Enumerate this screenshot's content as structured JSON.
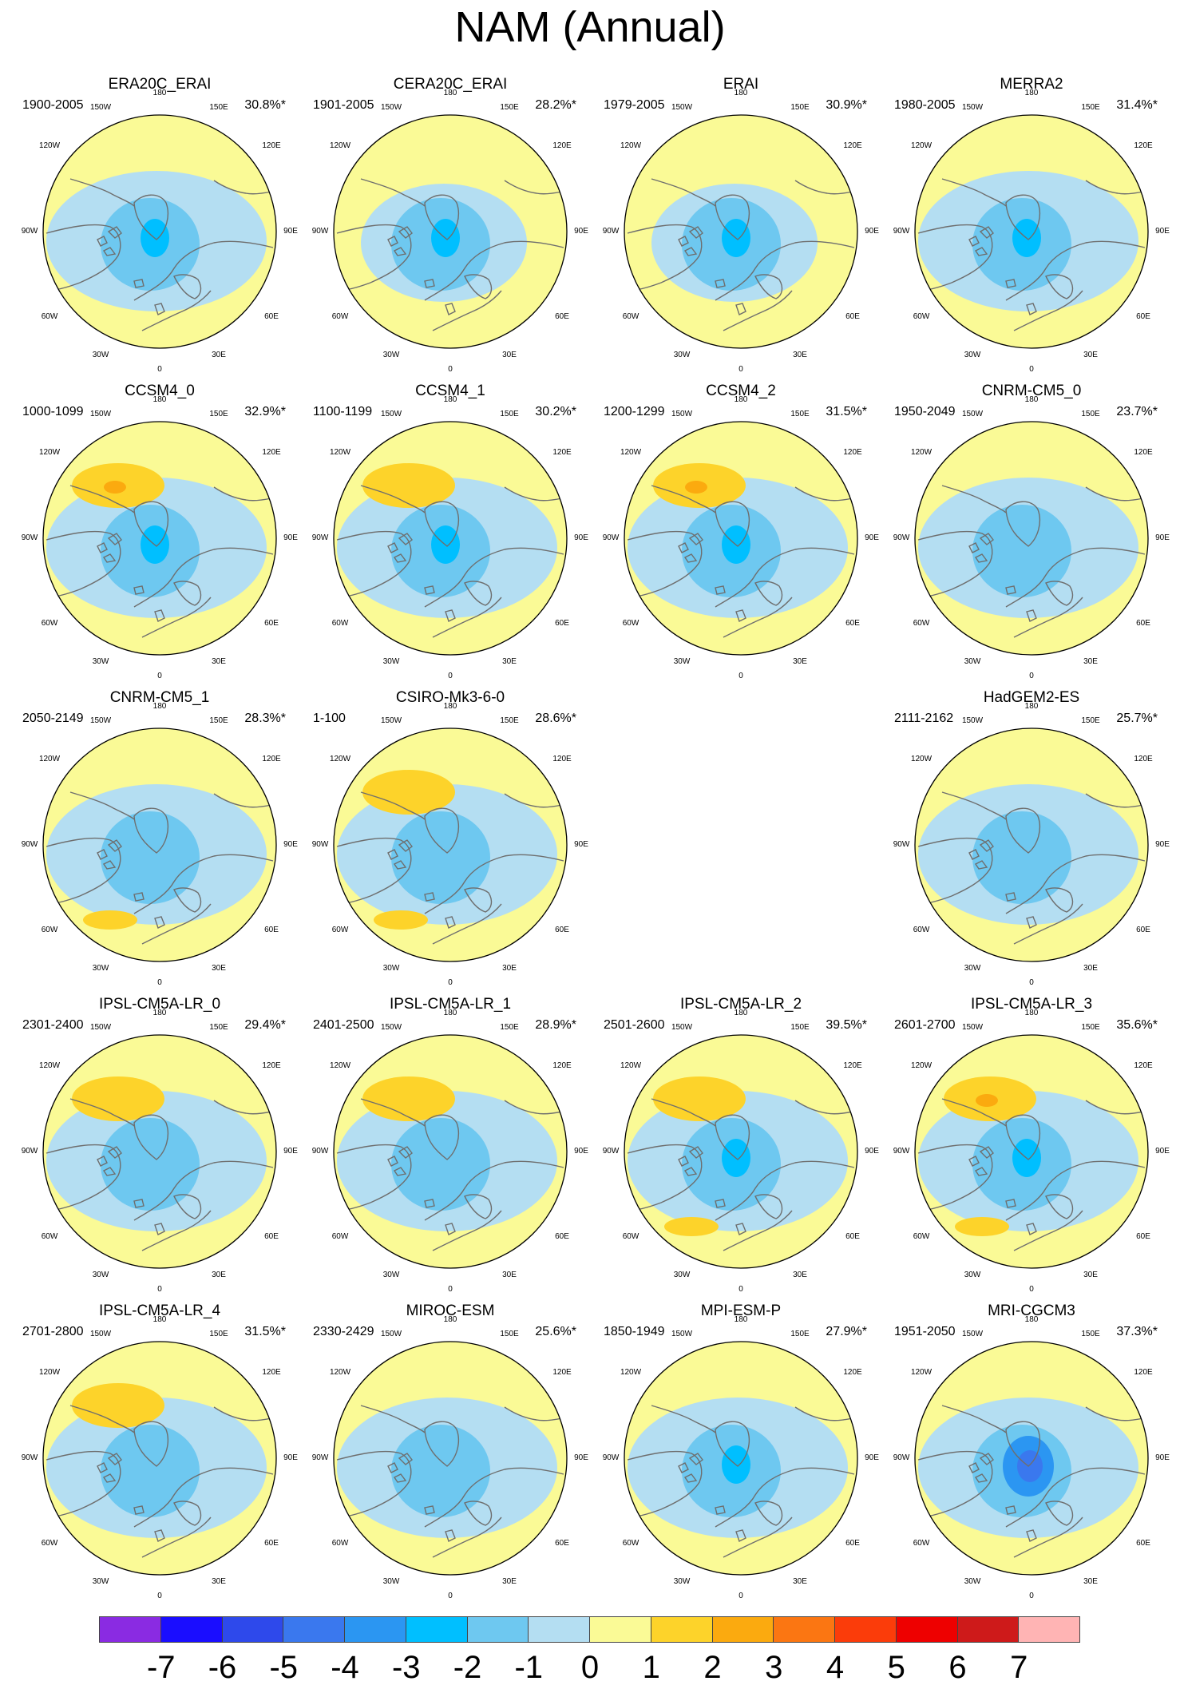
{
  "title": "NAM (Annual)",
  "map_labels": {
    "lon_180": "180",
    "lon_150w": "150W",
    "lon_150e": "150E",
    "lon_120w": "120W",
    "lon_120e": "120E",
    "lon_90w": "90W",
    "lon_90e": "90E",
    "lon_60w": "60W",
    "lon_60e": "60E",
    "lon_30w": "30W",
    "lon_30e": "30E",
    "lon_0": "0"
  },
  "colors": {
    "v-7": "#8a2be2",
    "v-6": "#1a0dff",
    "v-5": "#2e49eb",
    "v-4": "#3a78ee",
    "v-3": "#2b96f2",
    "v-2": "#00bfff",
    "v-1": "#6ec8f0",
    "v0": "#b4def2",
    "v1": "#fafa96",
    "v2": "#fdd32a",
    "v3": "#fbaa0f",
    "v4": "#fb7612",
    "v5": "#fb3c0a",
    "v6": "#ee0000",
    "v7": "#ce1a1a",
    "v8": "#ffb4b4",
    "coast": "#6e6e6e"
  },
  "colorbar": {
    "labels": [
      "-7",
      "-6",
      "-5",
      "-4",
      "-3",
      "-2",
      "-1",
      "0",
      "1",
      "2",
      "3",
      "4",
      "5",
      "6",
      "7"
    ],
    "colors": [
      "#8a2be2",
      "#1a0dff",
      "#2e49eb",
      "#3a78ee",
      "#2b96f2",
      "#00bfff",
      "#6ec8f0",
      "#b4def2",
      "#fafa96",
      "#fdd32a",
      "#fbaa0f",
      "#fb7612",
      "#fb3c0a",
      "#ee0000",
      "#ce1a1a",
      "#ffb4b4"
    ]
  },
  "panels": [
    {
      "name": "ERA20C_ERAI",
      "years": "1900-2005",
      "pct": "30.8%*",
      "pacific": 0,
      "atlantic": 0,
      "core": -2,
      "broad": 1
    },
    {
      "name": "CERA20C_ERAI",
      "years": "1901-2005",
      "pct": "28.2%*",
      "pacific": 0,
      "atlantic": 0,
      "core": -2,
      "broad": 0
    },
    {
      "name": "ERAI",
      "years": "1979-2005",
      "pct": "30.9%*",
      "pacific": 0,
      "atlantic": 0,
      "core": -2,
      "broad": 0
    },
    {
      "name": "MERRA2",
      "years": "1980-2005",
      "pct": "31.4%*",
      "pacific": 0,
      "atlantic": 0,
      "core": -2,
      "broad": 1
    },
    {
      "name": "CCSM4_0",
      "years": "1000-1099",
      "pct": "32.9%*",
      "pacific": 3,
      "atlantic": 0,
      "core": -2,
      "broad": 1
    },
    {
      "name": "CCSM4_1",
      "years": "1100-1199",
      "pct": "30.2%*",
      "pacific": 2,
      "atlantic": 0,
      "core": -2,
      "broad": 1
    },
    {
      "name": "CCSM4_2",
      "years": "1200-1299",
      "pct": "31.5%*",
      "pacific": 3,
      "atlantic": 0,
      "core": -2,
      "broad": 1
    },
    {
      "name": "CNRM-CM5_0",
      "years": "1950-2049",
      "pct": "23.7%*",
      "pacific": 0,
      "atlantic": 0,
      "core": -1,
      "broad": 1
    },
    {
      "name": "CNRM-CM5_1",
      "years": "2050-2149",
      "pct": "28.3%*",
      "pacific": 0,
      "atlantic": 2,
      "core": -1,
      "broad": 1
    },
    {
      "name": "CSIRO-Mk3-6-0",
      "years": "1-100",
      "pct": "28.6%*",
      "pacific": 2,
      "atlantic": 2,
      "core": -1,
      "broad": 1
    },
    null,
    {
      "name": "HadGEM2-ES",
      "years": "2111-2162",
      "pct": "25.7%*",
      "pacific": 0,
      "atlantic": 0,
      "core": -1,
      "broad": 1
    },
    {
      "name": "IPSL-CM5A-LR_0",
      "years": "2301-2400",
      "pct": "29.4%*",
      "pacific": 2,
      "atlantic": 0,
      "core": -1,
      "broad": 1
    },
    {
      "name": "IPSL-CM5A-LR_1",
      "years": "2401-2500",
      "pct": "28.9%*",
      "pacific": 2,
      "atlantic": 0,
      "core": -1,
      "broad": 1
    },
    {
      "name": "IPSL-CM5A-LR_2",
      "years": "2501-2600",
      "pct": "39.5%*",
      "pacific": 2,
      "atlantic": 2,
      "core": -2,
      "broad": 1
    },
    {
      "name": "IPSL-CM5A-LR_3",
      "years": "2601-2700",
      "pct": "35.6%*",
      "pacific": 3,
      "atlantic": 2,
      "core": -2,
      "broad": 1
    },
    {
      "name": "IPSL-CM5A-LR_4",
      "years": "2701-2800",
      "pct": "31.5%*",
      "pacific": 2,
      "atlantic": 0,
      "core": -1,
      "broad": 1
    },
    {
      "name": "MIROC-ESM",
      "years": "2330-2429",
      "pct": "25.6%*",
      "pacific": 0,
      "atlantic": 0,
      "core": -1,
      "broad": 1
    },
    {
      "name": "MPI-ESM-P",
      "years": "1850-1949",
      "pct": "27.9%*",
      "pacific": 0,
      "atlantic": 0,
      "core": -2,
      "broad": 1
    },
    {
      "name": "MRI-CGCM3",
      "years": "1951-2050",
      "pct": "37.3%*",
      "pacific": 0,
      "atlantic": 0,
      "core": -4,
      "broad": 1
    }
  ]
}
